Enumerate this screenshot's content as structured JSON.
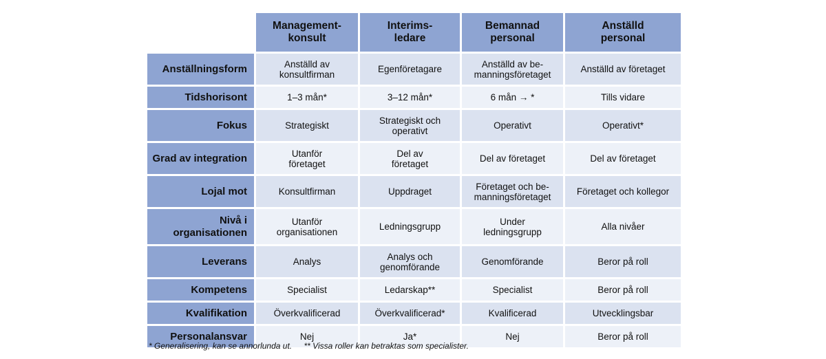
{
  "columns": [
    "Management-\nkonsult",
    "Interims-\nledare",
    "Bemannad\npersonal",
    "Anställd\npersonal"
  ],
  "rows": [
    {
      "label": "Anställningsform",
      "cells": [
        "Anställd av\nkonsultfirman",
        "Egenföretagare",
        "Anställd av be-\nmanningsföretaget",
        "Anställd av företaget"
      ]
    },
    {
      "label": "Tidshorisont",
      "cells": [
        "1–3 mån*",
        "3–12 mån*",
        "6 mån → *",
        "Tills vidare"
      ]
    },
    {
      "label": "Fokus",
      "cells": [
        "Strategiskt",
        "Strategiskt och\noperativt",
        "Operativt",
        "Operativt*"
      ]
    },
    {
      "label": "Grad av integration",
      "cells": [
        "Utanför\nföretaget",
        "Del av\nföretaget",
        "Del av företaget",
        "Del av företaget"
      ]
    },
    {
      "label": "Lojal mot",
      "cells": [
        "Konsultfirman",
        "Uppdraget",
        "Företaget och be-\nmanningsföretaget",
        "Företaget och kollegor"
      ]
    },
    {
      "label": "Nivå i\norganisationen",
      "cells": [
        "Utanför\norganisationen",
        "Ledningsgrupp",
        "Under\nledningsgrupp",
        "Alla nivåer"
      ]
    },
    {
      "label": "Leverans",
      "cells": [
        "Analys",
        "Analys och\ngenomförande",
        "Genomförande",
        "Beror på roll"
      ]
    },
    {
      "label": "Kompetens",
      "cells": [
        "Specialist",
        "Ledarskap**",
        "Specialist",
        "Beror på roll"
      ]
    },
    {
      "label": "Kvalifikation",
      "cells": [
        "Överkvalificerad",
        "Överkvalificerad*",
        "Kvalificerad",
        "Utvecklingsbar"
      ]
    },
    {
      "label": "Personalansvar",
      "cells": [
        "Nej",
        "Ja*",
        "Nej",
        "Beror på roll"
      ]
    }
  ],
  "footnotes": [
    "* Generalisering, kan se annorlunda ut.",
    "** Vissa roller kan betraktas som specialister."
  ],
  "colors": {
    "header_bg": "#8ea4d2",
    "cell_bg_dark": "#dbe2f0",
    "cell_bg_light": "#edf1f8"
  }
}
